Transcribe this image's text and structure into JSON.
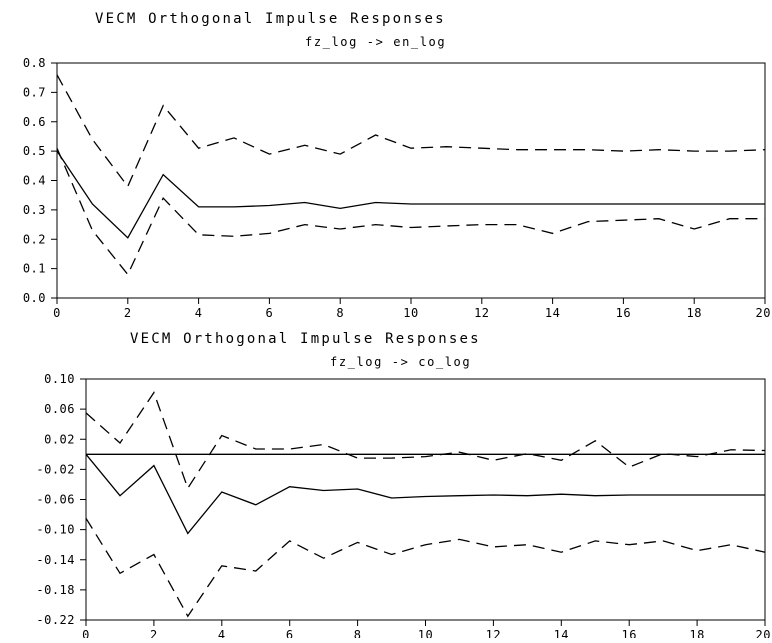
{
  "chart_data": [
    {
      "type": "line",
      "title": "VECM Orthogonal Impulse Responses",
      "subtitle": "fz_log -> en_log",
      "xlim": [
        0,
        20
      ],
      "ylim": [
        0.0,
        0.8
      ],
      "x_ticks": [
        "0",
        "2",
        "4",
        "6",
        "8",
        "10",
        "12",
        "14",
        "16",
        "18",
        "20"
      ],
      "y_ticks": [
        "0.0",
        "0.1",
        "0.2",
        "0.3",
        "0.4",
        "0.5",
        "0.6",
        "0.7",
        "0.8"
      ],
      "x": [
        0,
        1,
        2,
        3,
        4,
        5,
        6,
        7,
        8,
        9,
        10,
        11,
        12,
        13,
        14,
        15,
        16,
        17,
        18,
        19,
        20
      ],
      "series": [
        {
          "style": "solid",
          "values": [
            0.5,
            0.32,
            0.205,
            0.42,
            0.31,
            0.31,
            0.315,
            0.325,
            0.305,
            0.325,
            0.32,
            0.32,
            0.32,
            0.32,
            0.32,
            0.32,
            0.32,
            0.32,
            0.32,
            0.32,
            0.32
          ]
        },
        {
          "style": "dashed",
          "values": [
            0.76,
            0.54,
            0.38,
            0.655,
            0.51,
            0.545,
            0.49,
            0.52,
            0.49,
            0.555,
            0.51,
            0.515,
            0.51,
            0.505,
            0.505,
            0.505,
            0.5,
            0.505,
            0.5,
            0.5,
            0.505
          ]
        },
        {
          "style": "dashed",
          "values": [
            0.51,
            0.23,
            0.08,
            0.34,
            0.215,
            0.21,
            0.22,
            0.25,
            0.235,
            0.25,
            0.24,
            0.245,
            0.25,
            0.25,
            0.22,
            0.26,
            0.265,
            0.27,
            0.235,
            0.27,
            0.27
          ]
        }
      ]
    },
    {
      "type": "line",
      "title": "VECM Orthogonal Impulse Responses",
      "subtitle": "fz_log -> co_log",
      "xlim": [
        0,
        20
      ],
      "ylim": [
        -0.22,
        0.1
      ],
      "x_ticks": [
        "0",
        "2",
        "4",
        "6",
        "8",
        "10",
        "12",
        "14",
        "16",
        "18",
        "20"
      ],
      "y_ticks": [
        "0.10",
        "0.06",
        "0.02",
        "-0.02",
        "-0.06",
        "-0.10",
        "-0.14",
        "-0.18",
        "-0.22"
      ],
      "x": [
        0,
        1,
        2,
        3,
        4,
        5,
        6,
        7,
        8,
        9,
        10,
        11,
        12,
        13,
        14,
        15,
        16,
        17,
        18,
        19,
        20
      ],
      "zero_line": 0,
      "series": [
        {
          "style": "solid",
          "values": [
            0.0,
            -0.055,
            -0.015,
            -0.105,
            -0.05,
            -0.067,
            -0.043,
            -0.048,
            -0.046,
            -0.058,
            -0.056,
            -0.055,
            -0.054,
            -0.055,
            -0.053,
            -0.055,
            -0.054,
            -0.054,
            -0.054,
            -0.054,
            -0.054
          ]
        },
        {
          "style": "dashed",
          "values": [
            0.055,
            0.015,
            0.082,
            -0.045,
            0.025,
            0.007,
            0.007,
            0.013,
            -0.005,
            -0.005,
            -0.003,
            0.003,
            -0.008,
            0.001,
            -0.008,
            0.018,
            -0.017,
            0.001,
            -0.003,
            0.006,
            0.005
          ]
        },
        {
          "style": "dashed",
          "values": [
            -0.085,
            -0.158,
            -0.133,
            -0.215,
            -0.148,
            -0.155,
            -0.115,
            -0.138,
            -0.117,
            -0.133,
            -0.12,
            -0.113,
            -0.123,
            -0.12,
            -0.13,
            -0.115,
            -0.12,
            -0.115,
            -0.128,
            -0.12,
            -0.13
          ]
        }
      ]
    }
  ]
}
